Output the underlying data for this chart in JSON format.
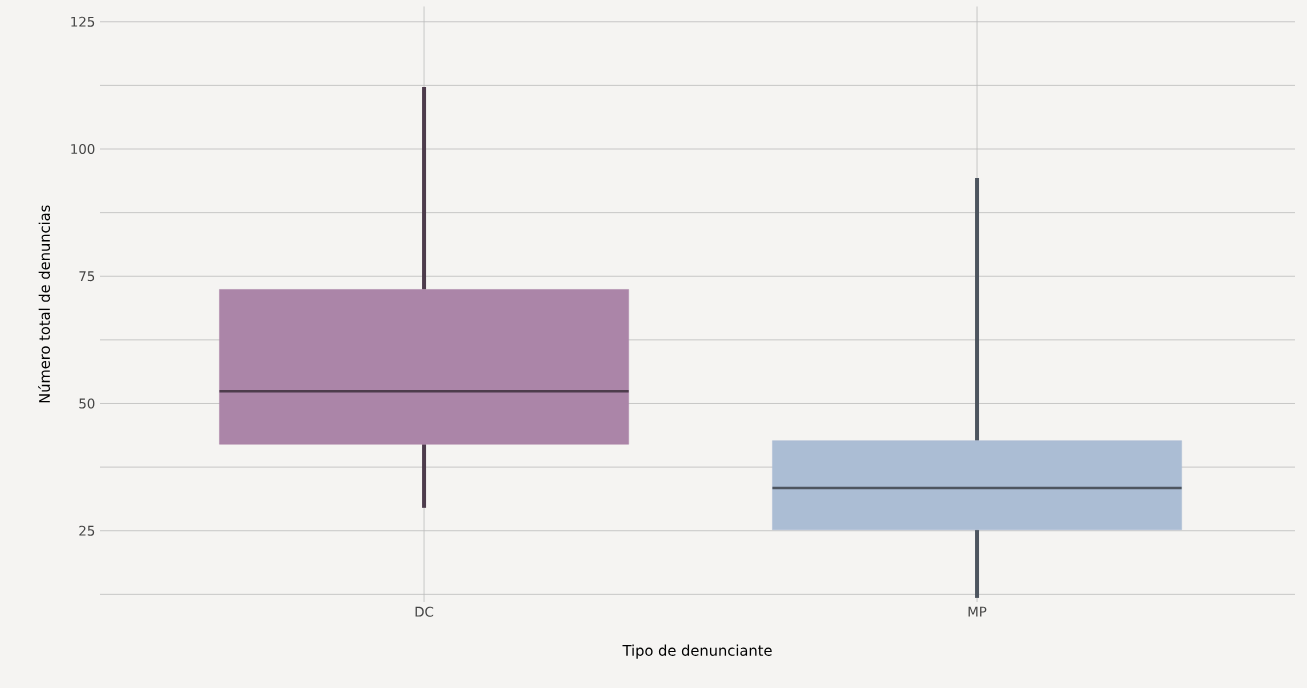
{
  "chart_data": {
    "type": "box",
    "xlabel": "Tipo de denunciante",
    "ylabel": "Número total de denuncias",
    "categories": [
      "DC",
      "MP"
    ],
    "boxes": [
      {
        "low": 29.5,
        "q1": 42,
        "median": 52.4,
        "q3": 72.4,
        "high": 112.2
      },
      {
        "low": 11.8,
        "q1": 25.2,
        "median": 33.4,
        "q3": 42.7,
        "high": 94.3
      }
    ],
    "colors": [
      "#ab85a8",
      "#abbdd4"
    ],
    "ylim": [
      11,
      128
    ],
    "yticks": [
      25,
      50,
      75,
      100,
      125
    ],
    "grid": true
  }
}
